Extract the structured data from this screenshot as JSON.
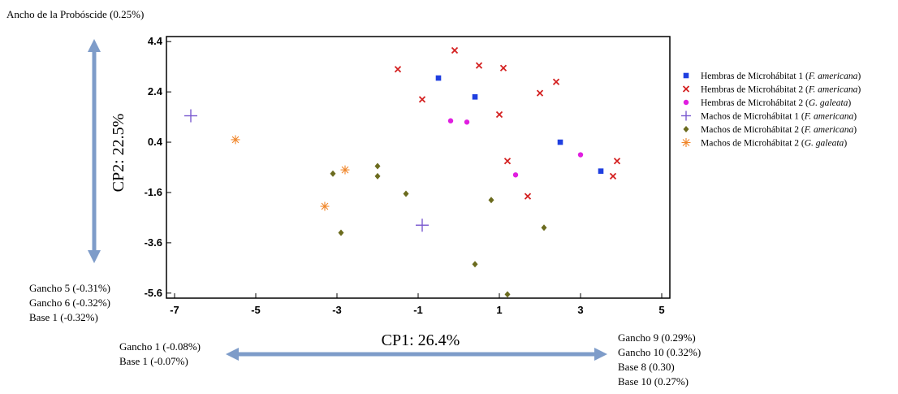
{
  "chart_data": {
    "type": "scatter",
    "xlabel": "CP1: 26.4%",
    "ylabel": "CP2: 22.5%",
    "xlim": [
      -7.2,
      5.2
    ],
    "ylim": [
      -5.8,
      4.6
    ],
    "x_ticks": [
      -7,
      -5,
      -3,
      -1,
      1,
      3,
      5
    ],
    "y_ticks": [
      4.4,
      2.4,
      0.4,
      -1.6,
      -3.6,
      -5.6
    ],
    "grid": false,
    "legend_position": "right",
    "series": [
      {
        "name": "Hembras de Microhábitat 1",
        "name_suffix": "F. americana",
        "marker": "square",
        "color": "#1f3fe0",
        "points": [
          [
            -0.5,
            2.95
          ],
          [
            0.4,
            2.2
          ],
          [
            2.5,
            0.4
          ],
          [
            3.5,
            -0.75
          ]
        ]
      },
      {
        "name": "Hembras de Microhábitat 2",
        "name_suffix": "F. americana",
        "marker": "x",
        "color": "#d42020",
        "points": [
          [
            -1.5,
            3.3
          ],
          [
            -0.1,
            4.05
          ],
          [
            0.5,
            3.45
          ],
          [
            1.1,
            3.35
          ],
          [
            -0.9,
            2.1
          ],
          [
            2.0,
            2.35
          ],
          [
            2.4,
            2.8
          ],
          [
            1.0,
            1.5
          ],
          [
            1.2,
            -0.35
          ],
          [
            3.9,
            -0.35
          ],
          [
            3.8,
            -0.95
          ],
          [
            1.7,
            -1.75
          ]
        ]
      },
      {
        "name": "Hembras de Microhábitat 2",
        "name_suffix": "G. galeata",
        "marker": "circle",
        "color": "#e01ee0",
        "points": [
          [
            -0.2,
            1.25
          ],
          [
            0.2,
            1.2
          ],
          [
            3.0,
            -0.1
          ],
          [
            1.4,
            -0.9
          ]
        ]
      },
      {
        "name": "Machos de Microhábitat 1",
        "name_suffix": "F. americana",
        "marker": "plus",
        "color": "#7a5ad0",
        "points": [
          [
            -6.6,
            1.45
          ],
          [
            -0.9,
            -2.9
          ]
        ]
      },
      {
        "name": "Machos de Microhábitat 2",
        "name_suffix": "F. americana",
        "marker": "diamond",
        "color": "#6b6b1e",
        "points": [
          [
            -2.0,
            -0.55
          ],
          [
            -2.0,
            -0.95
          ],
          [
            -3.1,
            -0.85
          ],
          [
            -1.3,
            -1.65
          ],
          [
            0.8,
            -1.9
          ],
          [
            -2.9,
            -3.2
          ],
          [
            2.1,
            -3.0
          ],
          [
            0.4,
            -4.45
          ],
          [
            1.2,
            -5.65
          ]
        ]
      },
      {
        "name": "Machos de Microhábitat 2",
        "name_suffix": "G. galeata",
        "marker": "asterisk",
        "color": "#f0862a",
        "points": [
          [
            -5.5,
            0.5
          ],
          [
            -2.8,
            -0.7
          ],
          [
            -3.3,
            -2.15
          ]
        ]
      }
    ]
  },
  "annotations": {
    "top_left": [
      "Ancho de la Probóscide (0.25%)"
    ],
    "bottom_left": [
      "Gancho 5 (-0.31%)",
      "Gancho 6 (-0.32%)",
      "Base 1 (-0.32%)"
    ],
    "left_mid": [
      "Gancho 1 (-0.08%)",
      "Base 1 (-0.07%)"
    ],
    "right_mid": [
      "Gancho 9 (0.29%)",
      "Gancho 10 (0.32%)",
      "Base 8 (0.30)",
      "Base 10 (0.27%)"
    ]
  },
  "colors": {
    "arrow": "#7e9cc9",
    "axis": "#000000"
  }
}
